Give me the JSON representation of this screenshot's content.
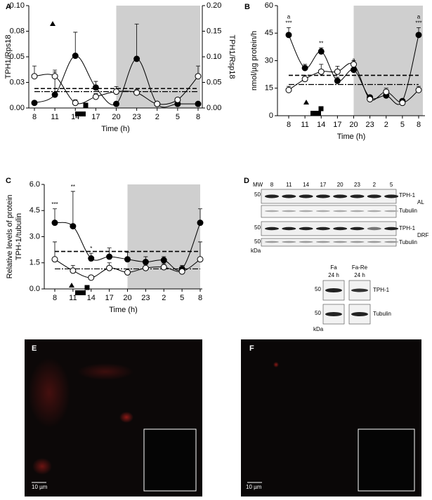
{
  "chart_data": [
    {
      "type": "line",
      "panel": "A",
      "xlabel": "Time (h)",
      "ylabel": "TPH1/Rps18",
      "y2label": "TPH1/Rsp18",
      "categories": [
        "8",
        "11",
        "14",
        "17",
        "20",
        "23",
        "2",
        "5",
        "8"
      ],
      "ylim": [
        0,
        0.1
      ],
      "yticks": [
        {
          "value": 0,
          "label": "0.00"
        },
        {
          "value": 0.025,
          "label": "0.03"
        },
        0.05,
        {
          "value": 0.075,
          "label": "0.08"
        },
        {
          "value": 0.1,
          "label": "0.10"
        }
      ],
      "y2lim": [
        0,
        0.2
      ],
      "y2ticks": [
        {
          "value": 0,
          "label": "0.00"
        },
        0.05,
        {
          "value": 0.1,
          "label": "0.10"
        },
        0.15,
        {
          "value": 0.2,
          "label": "0.20"
        }
      ],
      "shaded_from": "20",
      "series": [
        {
          "marker": "filled",
          "color": "#000000",
          "values": [
            0.005,
            0.013,
            0.051,
            0.02,
            0.004,
            0.048,
            0.004,
            0.004,
            0.004
          ],
          "errors": [
            0.002,
            0.022,
            0.023,
            0.006,
            0.002,
            0.034,
            0.002,
            0.002,
            0.002
          ]
        },
        {
          "marker": "open",
          "color": "#000000",
          "values": [
            0.031,
            0.031,
            0.005,
            0.011,
            0.016,
            0.015,
            0.004,
            0.008,
            0.031
          ],
          "errors": [
            0.01,
            0.006,
            0.003,
            0.003,
            0.005,
            0.003,
            0.002,
            0.002,
            0.01
          ]
        }
      ],
      "reference_lines": [
        {
          "value": 0.019,
          "style": "dashed"
        },
        {
          "value": 0.016,
          "style": "dash-dot"
        }
      ]
    },
    {
      "type": "line",
      "panel": "B",
      "xlabel": "Time (h)",
      "ylabel": "nmol/µg protein/h",
      "categories": [
        "8",
        "11",
        "14",
        "17",
        "20",
        "23",
        "2",
        "5",
        "8"
      ],
      "ylim": [
        0,
        60
      ],
      "yticks": [
        0,
        15,
        30,
        45,
        60
      ],
      "shaded_from": "20",
      "series": [
        {
          "marker": "filled",
          "color": "#000000",
          "values": [
            44,
            26,
            35,
            19,
            25,
            10,
            11,
            8,
            44
          ],
          "errors": [
            4,
            2,
            2,
            2,
            3,
            1,
            1,
            1,
            4
          ],
          "significance": [
            "***",
            null,
            "**",
            null,
            null,
            null,
            null,
            null,
            "***"
          ],
          "letters": [
            "a",
            null,
            null,
            null,
            "a",
            null,
            null,
            null,
            "a"
          ]
        },
        {
          "marker": "open",
          "color": "#000000",
          "values": [
            14,
            20,
            24,
            24,
            28,
            9,
            13,
            7,
            14
          ],
          "errors": [
            2,
            2,
            4,
            3,
            2,
            1,
            2,
            1,
            2
          ]
        }
      ],
      "reference_lines": [
        {
          "value": 22,
          "style": "dashed"
        },
        {
          "value": 17,
          "style": "dash-dot"
        }
      ]
    },
    {
      "type": "line",
      "panel": "C",
      "xlabel": "Time (h)",
      "ylabel": [
        "Relative levels of protein",
        "TPH-1/tubulin"
      ],
      "categories": [
        "8",
        "11",
        "14",
        "17",
        "20",
        "23",
        "2",
        "5",
        "8"
      ],
      "ylim": [
        0,
        6
      ],
      "yticks": [
        {
          "value": 0,
          "label": "0.0"
        },
        1.5,
        {
          "value": 3,
          "label": "3.0"
        },
        4.5,
        {
          "value": 6,
          "label": "6.0"
        }
      ],
      "shaded_from": "20",
      "series": [
        {
          "marker": "filled",
          "color": "#000000",
          "values": [
            3.8,
            3.6,
            1.75,
            1.85,
            1.7,
            1.55,
            1.65,
            1.15,
            3.8
          ],
          "errors": [
            0.8,
            2.0,
            0.3,
            0.5,
            0.4,
            0.3,
            0.2,
            0.2,
            0.8
          ],
          "significance": [
            "***",
            "**",
            "*",
            null,
            null,
            null,
            null,
            null,
            null
          ]
        },
        {
          "marker": "open",
          "color": "#000000",
          "values": [
            1.7,
            1.05,
            0.65,
            1.2,
            0.95,
            1.2,
            1.25,
            1.0,
            1.7
          ],
          "errors": [
            1.0,
            0.3,
            0.1,
            0.3,
            0.2,
            0.2,
            0.2,
            0.2,
            1.0
          ]
        }
      ],
      "reference_lines": [
        {
          "value": 2.15,
          "style": "dashed"
        },
        {
          "value": 1.15,
          "style": "dash-dot"
        }
      ]
    }
  ],
  "panel_d": {
    "label": "D",
    "mw": "MW",
    "times": [
      "8",
      "11",
      "14",
      "17",
      "20",
      "23",
      "2",
      "5"
    ],
    "rows": [
      {
        "mw": "50",
        "protein": "TPH-1",
        "group": "AL"
      },
      {
        "protein": "Tubulin"
      },
      {
        "mw": "50",
        "protein": "TPH-1",
        "group": "DRF"
      },
      {
        "mw": "50",
        "protein": "Tubulin"
      }
    ],
    "kda": "kDa",
    "lower": {
      "conditions": [
        {
          "name": "Fa",
          "time": "24 h"
        },
        {
          "name": "Fa-Re",
          "time": "24 h"
        }
      ],
      "rows": [
        {
          "mw": "50",
          "protein": "TPH-1"
        },
        {
          "mw": "50",
          "protein": "Tubulin"
        }
      ],
      "kda": "kDa"
    }
  },
  "panel_e": {
    "label": "E",
    "scale_bar": "10 µm"
  },
  "panel_f": {
    "label": "F",
    "scale_bar": "10 µm"
  }
}
